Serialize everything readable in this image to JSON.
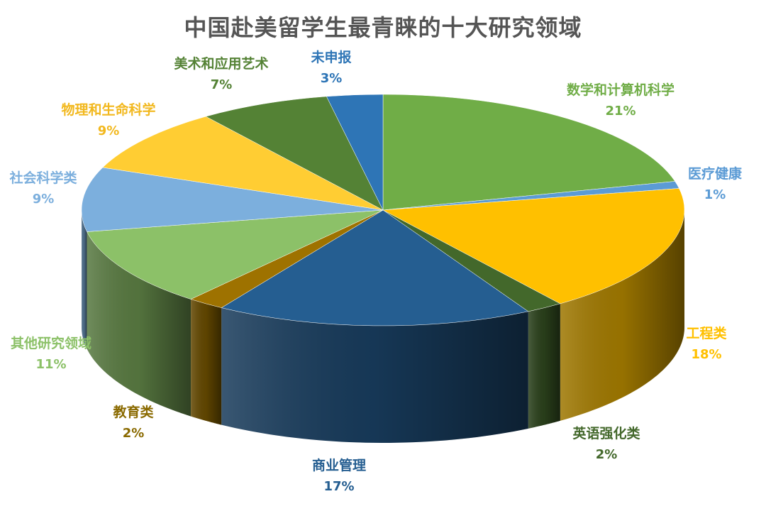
{
  "chart_data": {
    "type": "pie",
    "title": "中国赴美留学生最青睐的十大研究领域",
    "unit": "%",
    "slices": [
      {
        "label": "数学和计算机科学",
        "value": 21,
        "display": "21%",
        "color": "#70AD47"
      },
      {
        "label": "医疗健康",
        "value": 1,
        "display": "1%",
        "color": "#5B9BD5"
      },
      {
        "label": "工程类",
        "value": 18,
        "display": "18%",
        "color": "#FFC000"
      },
      {
        "label": "英语强化类",
        "value": 2,
        "display": "2%",
        "color": "#43682B"
      },
      {
        "label": "商业管理",
        "value": 17,
        "display": "17%",
        "color": "#255E91"
      },
      {
        "label": "教育类",
        "value": 2,
        "display": "2%",
        "color": "#9E7200"
      },
      {
        "label": "其他研究领域",
        "value": 11,
        "display": "11%",
        "color": "#8CC168"
      },
      {
        "label": "社会科学类",
        "value": 9,
        "display": "9%",
        "color": "#7CAFDD"
      },
      {
        "label": "物理和生命科学",
        "value": 9,
        "display": "9%",
        "color": "#FFCD33"
      },
      {
        "label": "美术和应用艺术",
        "value": 7,
        "display": "7%",
        "color": "#548235"
      },
      {
        "label": "未申报",
        "value": 3,
        "display": "3%",
        "color": "#2E75B6"
      }
    ]
  }
}
